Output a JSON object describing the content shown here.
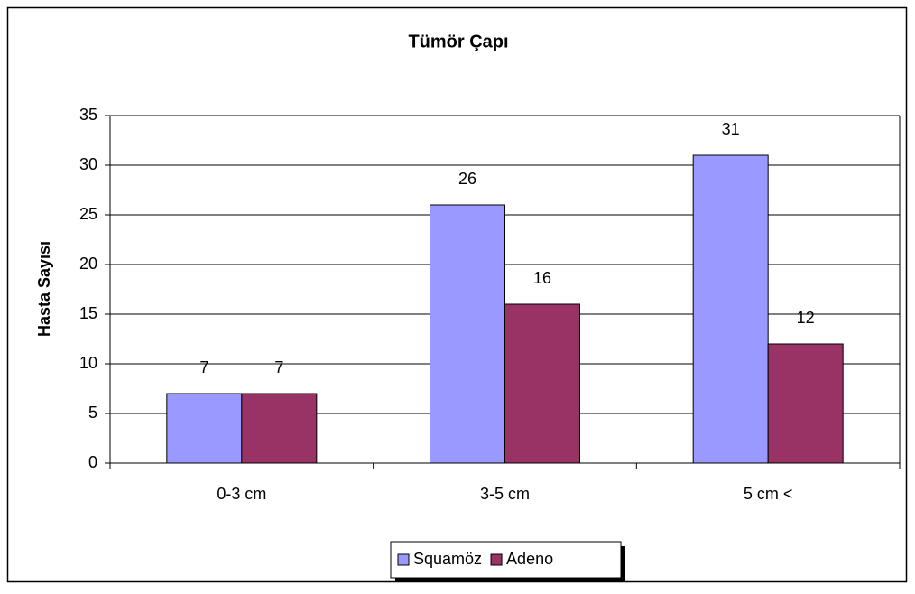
{
  "chart_data": {
    "type": "bar",
    "title": "Tümör Çapı",
    "y_label": "Hasta Sayısı",
    "categories": [
      "0-3 cm",
      "3-5 cm",
      "5 cm <"
    ],
    "series": [
      {
        "name": "Squamöz",
        "color": "#9999ff",
        "values": [
          7,
          26,
          31
        ]
      },
      {
        "name": "Adeno",
        "color": "#993366",
        "values": [
          7,
          16,
          12
        ]
      }
    ],
    "ylim": [
      0,
      35
    ],
    "yticks": [
      0,
      5,
      10,
      15,
      20,
      25,
      30,
      35
    ],
    "grid": true,
    "legend": "bottom"
  }
}
